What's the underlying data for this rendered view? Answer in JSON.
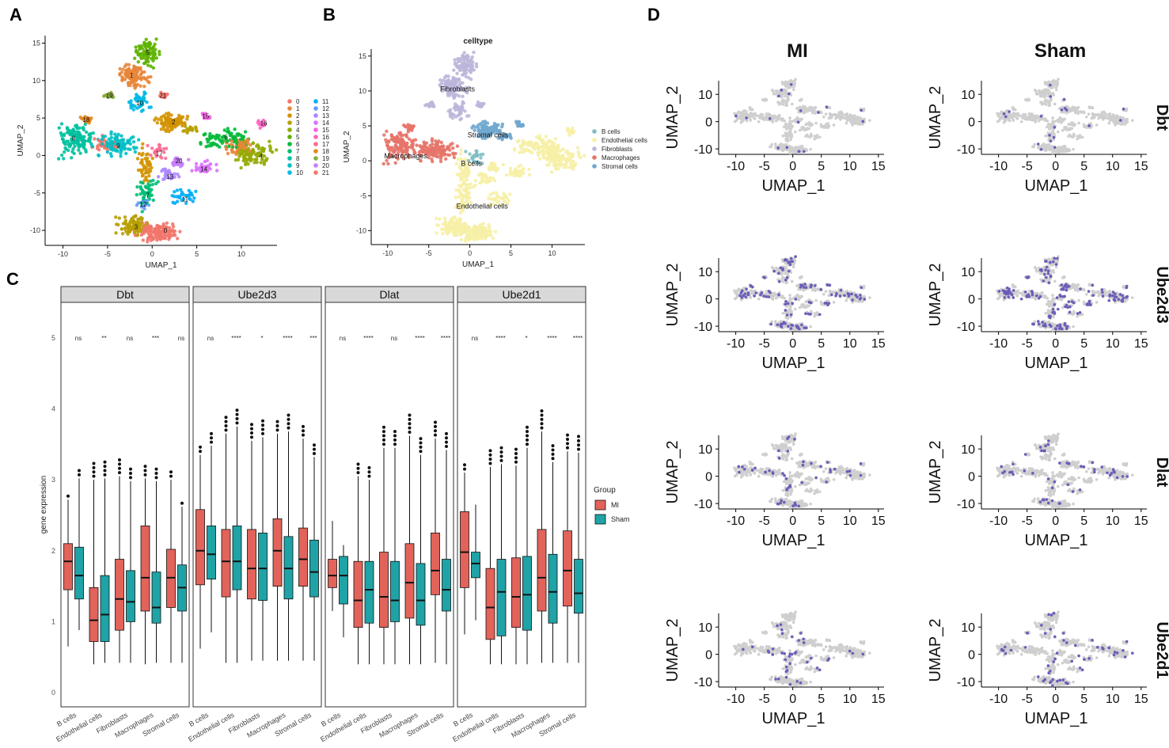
{
  "panel_letters": [
    "A",
    "B",
    "C",
    "D"
  ],
  "colors": {
    "mi": "#e2635a",
    "sham": "#1fa3a6",
    "umap_grey": "#cfcfcf",
    "highlight": "#6a5fb8",
    "strip": "#d9d9d9",
    "cluster_palette": [
      "#f2766c",
      "#e88638",
      "#d39200",
      "#b79f00",
      "#93aa00",
      "#5eb300",
      "#00ba38",
      "#00bf74",
      "#00c19f",
      "#00bfc4",
      "#00b9e3",
      "#00adfa",
      "#619cff",
      "#ae87ff",
      "#db72fb",
      "#f564e3",
      "#ff61c3",
      "#ff6c91",
      "#e7861a",
      "#8aab3c",
      "#c77cff",
      "#f8766d"
    ],
    "celltype_palette": [
      "#7fbfc4",
      "#f6efa6",
      "#bcb6da",
      "#e57469",
      "#6fa7cf"
    ]
  },
  "chart_data": [
    {
      "id": "A",
      "type": "scatter",
      "title": "",
      "xlabel": "UMAP_1",
      "ylabel": "UMAP_2",
      "xlim": [
        -12,
        14
      ],
      "ylim": [
        -12,
        16
      ],
      "xticks": [
        -10,
        -5,
        0,
        5,
        10
      ],
      "yticks": [
        -10,
        -5,
        0,
        5,
        10,
        15
      ],
      "legend": [
        "0",
        "1",
        "2",
        "3",
        "4",
        "5",
        "6",
        "7",
        "8",
        "9",
        "10",
        "11",
        "12",
        "13",
        "14",
        "15",
        "16",
        "17",
        "18",
        "19",
        "20",
        "21"
      ],
      "cluster_labels": [
        {
          "label": "0",
          "x": 1.5,
          "y": -10
        },
        {
          "label": "1",
          "x": -2.3,
          "y": 10.7
        },
        {
          "label": "2",
          "x": 2.4,
          "y": 4.5
        },
        {
          "label": "3",
          "x": -1.8,
          "y": -9.5
        },
        {
          "label": "4",
          "x": 12.2,
          "y": 0
        },
        {
          "label": "5",
          "x": -0.5,
          "y": 13.8
        },
        {
          "label": "6",
          "x": 8.3,
          "y": 2.5
        },
        {
          "label": "7",
          "x": -0.5,
          "y": -5.3
        },
        {
          "label": "8",
          "x": -8.8,
          "y": 2.3
        },
        {
          "label": "9",
          "x": -3.8,
          "y": 1.3
        },
        {
          "label": "10",
          "x": -1.4,
          "y": 7
        },
        {
          "label": "11",
          "x": 3.7,
          "y": -5.8
        },
        {
          "label": "12",
          "x": -1,
          "y": -6.5
        },
        {
          "label": "13",
          "x": 2,
          "y": -2.8
        },
        {
          "label": "14",
          "x": 5.8,
          "y": -1.8
        },
        {
          "label": "15",
          "x": 6,
          "y": 5.3
        },
        {
          "label": "16",
          "x": 12.5,
          "y": 4.3
        },
        {
          "label": "17",
          "x": 0.8,
          "y": 0.3
        },
        {
          "label": "18",
          "x": -7.4,
          "y": 4.8
        },
        {
          "label": "19",
          "x": -4.8,
          "y": 8
        },
        {
          "label": "20",
          "x": 3,
          "y": -0.7
        },
        {
          "label": "21",
          "x": 1.2,
          "y": 8
        }
      ]
    },
    {
      "id": "B",
      "type": "scatter",
      "title": "celltype",
      "xlabel": "UMAP_1",
      "ylabel": "UMAP_2",
      "xlim": [
        -12,
        14
      ],
      "ylim": [
        -12,
        16
      ],
      "xticks": [
        -10,
        -5,
        0,
        5,
        10
      ],
      "yticks": [
        -10,
        -5,
        0,
        5,
        10,
        15
      ],
      "legend": [
        "B cells",
        "Endothelial cells",
        "Fibroblasts",
        "Macrophages",
        "Stromal cells"
      ],
      "cluster_labels": [
        {
          "label": "Fibroblasts",
          "x": -1.5,
          "y": 10.3
        },
        {
          "label": "Stromal cells",
          "x": 2.2,
          "y": 3.7
        },
        {
          "label": "Macrophages",
          "x": -7.8,
          "y": 0.7
        },
        {
          "label": "B cells",
          "x": 0.2,
          "y": -0.4
        },
        {
          "label": "Endothelial cells",
          "x": 1.5,
          "y": -6.5
        }
      ]
    },
    {
      "id": "C",
      "type": "box",
      "ylabel": "gene expression",
      "ylim": [
        -0.2,
        5.5
      ],
      "yticks": [
        0,
        1,
        2,
        3,
        4,
        5
      ],
      "categories": [
        "B cells",
        "Endothelial cells",
        "Fibroblasts",
        "Macrophages",
        "Stromal cells"
      ],
      "legend_title": "Group",
      "legend": [
        "MI",
        "Sham"
      ],
      "facets": [
        {
          "gene": "Dbt",
          "sig": [
            "ns",
            "**",
            "ns",
            "***",
            "ns"
          ],
          "mi": [
            [
              0.65,
              1.45,
              1.85,
              2.1,
              2.72
            ],
            [
              0.4,
              0.72,
              1.02,
              1.48,
              3.0
            ],
            [
              0.42,
              0.88,
              1.32,
              1.88,
              3.05
            ],
            [
              0.4,
              1.15,
              1.62,
              2.35,
              3.02
            ],
            [
              0.42,
              1.2,
              1.62,
              2.02,
              3.0
            ]
          ],
          "sham": [
            [
              0.88,
              1.32,
              1.65,
              2.05,
              3.02
            ],
            [
              0.42,
              0.72,
              1.1,
              1.65,
              3.02
            ],
            [
              0.42,
              1.0,
              1.28,
              1.72,
              2.98
            ],
            [
              0.42,
              0.98,
              1.2,
              1.7,
              2.98
            ],
            [
              0.42,
              1.15,
              1.48,
              1.8,
              2.62
            ]
          ]
        },
        {
          "gene": "Ube2d3",
          "sig": [
            "ns",
            "****",
            "*",
            "****",
            "***"
          ],
          "mi": [
            [
              0.62,
              1.52,
              2.0,
              2.58,
              3.35
            ],
            [
              0.42,
              1.35,
              1.85,
              2.3,
              3.65
            ],
            [
              0.45,
              1.32,
              1.75,
              2.3,
              3.55
            ],
            [
              0.45,
              1.5,
              2.0,
              2.45,
              3.65
            ],
            [
              0.45,
              1.5,
              1.88,
              2.32,
              3.58
            ]
          ],
          "sham": [
            [
              0.85,
              1.6,
              1.95,
              2.35,
              3.48
            ],
            [
              0.42,
              1.45,
              1.85,
              2.35,
              3.75
            ],
            [
              0.45,
              1.3,
              1.75,
              2.25,
              3.6
            ],
            [
              0.45,
              1.32,
              1.75,
              2.2,
              3.68
            ],
            [
              0.45,
              1.35,
              1.7,
              2.15,
              3.32
            ]
          ]
        },
        {
          "gene": "Dlat",
          "sig": [
            "ns",
            "****",
            "ns",
            "****",
            "****"
          ],
          "mi": [
            [
              1.15,
              1.48,
              1.65,
              1.88,
              2.42
            ],
            [
              0.4,
              0.92,
              1.3,
              1.85,
              3.05
            ],
            [
              0.4,
              0.92,
              1.35,
              1.98,
              3.45
            ],
            [
              0.4,
              1.05,
              1.55,
              2.1,
              3.62
            ],
            [
              0.42,
              1.38,
              1.72,
              2.25,
              3.58
            ]
          ],
          "sham": [
            [
              0.78,
              1.25,
              1.65,
              1.92,
              2.08
            ],
            [
              0.4,
              0.98,
              1.45,
              1.85,
              3.0
            ],
            [
              0.4,
              1.0,
              1.3,
              1.85,
              3.45
            ],
            [
              0.4,
              0.95,
              1.3,
              1.82,
              3.35
            ],
            [
              0.4,
              1.15,
              1.45,
              1.88,
              3.42
            ]
          ]
        },
        {
          "gene": "Ube2d1",
          "sig": [
            "ns",
            "****",
            "*",
            "****",
            "****"
          ],
          "mi": [
            [
              0.82,
              1.48,
              1.98,
              2.55,
              3.1
            ],
            [
              0.4,
              0.75,
              1.2,
              1.75,
              3.18
            ],
            [
              0.4,
              0.92,
              1.35,
              1.9,
              3.2
            ],
            [
              0.42,
              1.15,
              1.62,
              2.3,
              3.68
            ],
            [
              0.42,
              1.22,
              1.72,
              2.28,
              3.4
            ]
          ],
          "sham": [
            [
              1.02,
              1.62,
              1.82,
              1.98,
              2.65
            ],
            [
              0.4,
              0.8,
              1.42,
              1.88,
              3.22
            ],
            [
              0.4,
              0.88,
              1.38,
              1.92,
              3.45
            ],
            [
              0.42,
              0.98,
              1.42,
              1.95,
              3.25
            ],
            [
              0.42,
              1.12,
              1.4,
              1.88,
              3.38
            ]
          ]
        }
      ]
    },
    {
      "id": "D",
      "type": "scatter",
      "columns": [
        "MI",
        "Sham"
      ],
      "rows": [
        "Dbt",
        "Ube2d3",
        "Dlat",
        "Ube2d1"
      ],
      "xlabel": "UMAP_1",
      "ylabel": "UMAP_2",
      "xlim": [
        -13,
        16
      ],
      "ylim": [
        -12,
        15
      ],
      "xticks": [
        -10,
        -5,
        0,
        5,
        10,
        15
      ],
      "yticks": [
        -10,
        0,
        10
      ]
    }
  ]
}
